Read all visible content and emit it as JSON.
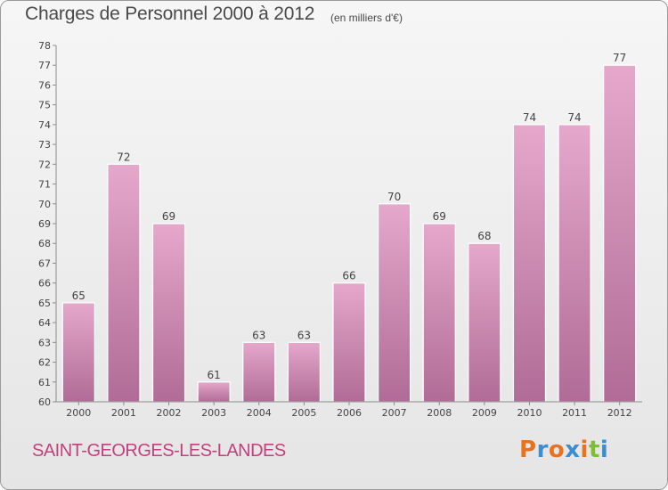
{
  "header": {
    "title": "Charges de Personnel 2000 à 2012",
    "unit_note": "(en milliers d'€)"
  },
  "footer": {
    "commune": "SAINT-GEORGES-LES-LANDES",
    "logo_letters": [
      "P",
      "r",
      "o",
      "x",
      "i",
      "t",
      "i"
    ]
  },
  "colors": {
    "bar_fill_light": "#e5a8cb",
    "bar_fill_dark": "#b06c96",
    "bar_edge": "#ffffff",
    "commune_text": "#c2407e",
    "logo_letters": [
      "#e8731f",
      "#3b8fd1",
      "#e8731f",
      "#3b8fd1",
      "#e8731f",
      "#7fbf2e",
      "#3b8fd1"
    ]
  },
  "chart_data": {
    "type": "bar",
    "title": "Charges de Personnel 2000 à 2012",
    "subtitle": "(en milliers d'€)",
    "categories": [
      "2000",
      "2001",
      "2002",
      "2003",
      "2004",
      "2005",
      "2006",
      "2007",
      "2008",
      "2009",
      "2010",
      "2011",
      "2012"
    ],
    "values": [
      65,
      72,
      69,
      61,
      63,
      63,
      66,
      70,
      69,
      68,
      74,
      74,
      77
    ],
    "ylim": [
      60,
      78
    ],
    "yticks": [
      60,
      61,
      62,
      63,
      64,
      65,
      66,
      67,
      68,
      69,
      70,
      71,
      72,
      73,
      74,
      75,
      76,
      77,
      78
    ],
    "grid": false,
    "data_labels": true
  }
}
